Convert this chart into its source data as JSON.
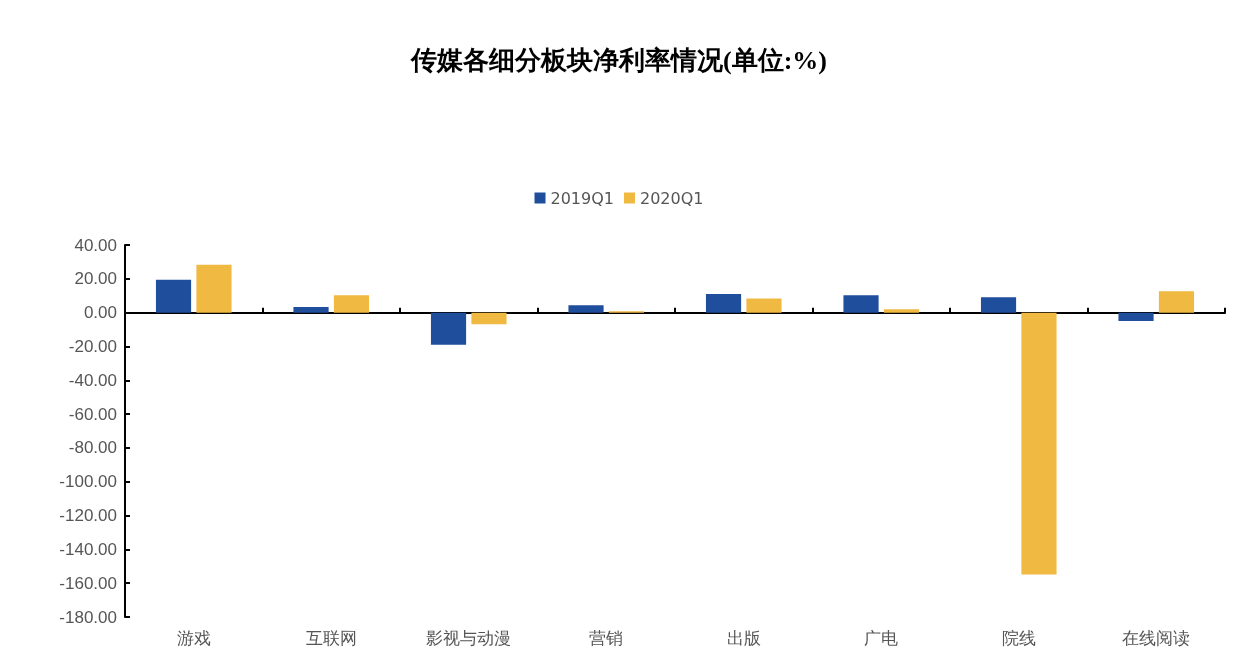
{
  "chart_data": {
    "type": "bar",
    "title": "传媒各细分板块净利率情况(单位:%)",
    "categories": [
      "游戏",
      "互联网",
      "影视与动漫",
      "营销",
      "出版",
      "广电",
      "院线",
      "在线阅读"
    ],
    "series": [
      {
        "name": "2019Q1",
        "color": "#1f4e9c",
        "values": [
          19.4,
          3.4,
          -19.0,
          4.3,
          11.0,
          10.3,
          9.1,
          -5.0
        ]
      },
      {
        "name": "2020Q1",
        "color": "#f0b942",
        "values": [
          28.3,
          10.3,
          -6.9,
          0.8,
          8.3,
          2.0,
          -154.9,
          12.6
        ]
      }
    ],
    "ylim": [
      -180,
      40
    ],
    "yticks": [
      {
        "value": -180,
        "label": "-180.00"
      },
      {
        "value": -160,
        "label": "-160.00"
      },
      {
        "value": -140,
        "label": "-140.00"
      },
      {
        "value": -120,
        "label": "-120.00"
      },
      {
        "value": -100,
        "label": "-100.00"
      },
      {
        "value": -80,
        "label": "-80.00"
      },
      {
        "value": -60,
        "label": "-60.00"
      },
      {
        "value": -40,
        "label": "-40.00"
      },
      {
        "value": -20,
        "label": "-20.00"
      },
      {
        "value": 0,
        "label": "0.00"
      },
      {
        "value": 20,
        "label": "20.00"
      },
      {
        "value": 40,
        "label": "40.00"
      }
    ],
    "legend": "top"
  }
}
